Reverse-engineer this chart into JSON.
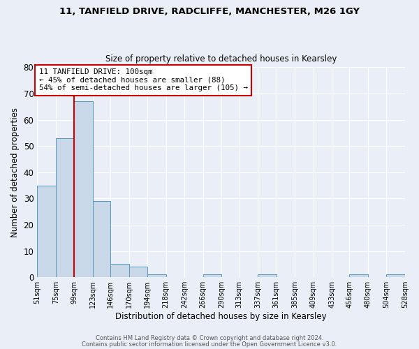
{
  "title1": "11, TANFIELD DRIVE, RADCLIFFE, MANCHESTER, M26 1GY",
  "title2": "Size of property relative to detached houses in Kearsley",
  "xlabel": "Distribution of detached houses by size in Kearsley",
  "ylabel": "Number of detached properties",
  "bins": [
    51,
    75,
    99,
    123,
    146,
    170,
    194,
    218,
    242,
    266,
    290,
    313,
    337,
    361,
    385,
    409,
    433,
    456,
    480,
    504,
    528
  ],
  "counts": [
    35,
    53,
    67,
    29,
    5,
    4,
    1,
    0,
    0,
    1,
    0,
    0,
    1,
    0,
    0,
    0,
    0,
    1,
    0,
    1
  ],
  "bar_color": "#c8d8e8",
  "bar_edge_color": "#5599bb",
  "property_line_x": 99,
  "property_line_color": "#cc0000",
  "annotation_text": "11 TANFIELD DRIVE: 100sqm\n← 45% of detached houses are smaller (88)\n54% of semi-detached houses are larger (105) →",
  "annotation_box_color": "#ffffff",
  "annotation_box_edge_color": "#cc0000",
  "ylim": [
    0,
    80
  ],
  "yticks": [
    0,
    10,
    20,
    30,
    40,
    50,
    60,
    70,
    80
  ],
  "footer1": "Contains HM Land Registry data © Crown copyright and database right 2024.",
  "footer2": "Contains public sector information licensed under the Open Government Licence v3.0.",
  "bg_color": "#eaeff7",
  "plot_bg_color": "#eaeff7",
  "grid_color": "#ffffff",
  "tick_labels": [
    "51sqm",
    "75sqm",
    "99sqm",
    "123sqm",
    "146sqm",
    "170sqm",
    "194sqm",
    "218sqm",
    "242sqm",
    "266sqm",
    "290sqm",
    "313sqm",
    "337sqm",
    "361sqm",
    "385sqm",
    "409sqm",
    "433sqm",
    "456sqm",
    "480sqm",
    "504sqm",
    "528sqm"
  ]
}
